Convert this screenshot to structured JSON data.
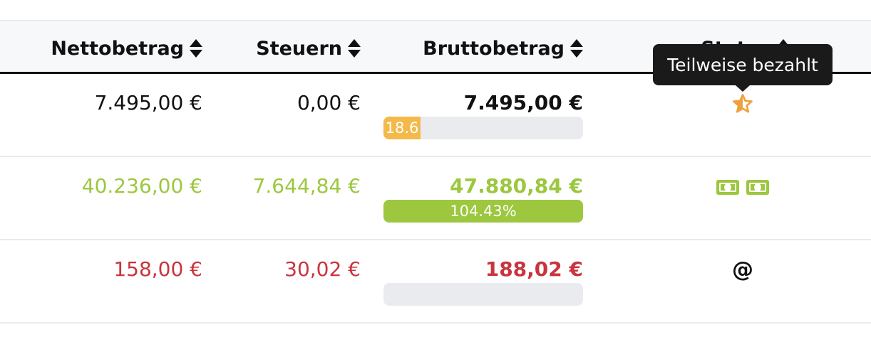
{
  "columns": {
    "netto": "Nettobetrag",
    "steuern": "Steuern",
    "brutto": "Bruttobetrag",
    "status": "Status"
  },
  "tooltip": {
    "text": "Teilweise bezahlt"
  },
  "colors": {
    "default": "#111111",
    "green": "#9cc73f",
    "red": "#c8353f",
    "orange": "#f3b94a",
    "star": "#f0a13b"
  },
  "rows": [
    {
      "netto": "7.495,00 €",
      "steuern": "0,00 €",
      "brutto": "7.495,00 €",
      "progress_label": "18.6",
      "progress_percent": 18.6,
      "progress_color": "#f3b94a",
      "text_color": "#111111",
      "brutto_color": "#111111",
      "status_icons": [
        "half-star-icon"
      ]
    },
    {
      "netto": "40.236,00 €",
      "steuern": "7.644,84 €",
      "brutto": "47.880,84 €",
      "progress_label": "104.43%",
      "progress_percent": 100,
      "progress_color": "#9cc73f",
      "text_color": "#9cc73f",
      "brutto_color": "#9cc73f",
      "status_icons": [
        "money-bill-icon",
        "money-bill-icon"
      ]
    },
    {
      "netto": "158,00 €",
      "steuern": "30,02 €",
      "brutto": "188,02 €",
      "progress_label": "",
      "progress_percent": 0,
      "progress_color": "#c8353f",
      "text_color": "#c8353f",
      "brutto_color": "#c8353f",
      "status_icons": [
        "at-sign-icon"
      ]
    }
  ]
}
